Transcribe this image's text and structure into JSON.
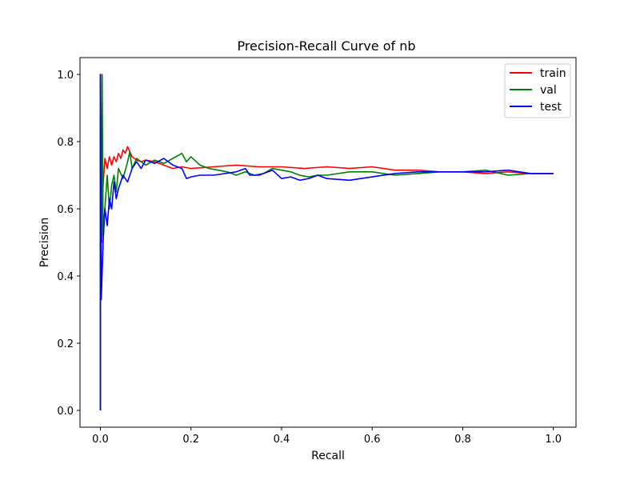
{
  "chart_data": {
    "type": "line",
    "title": "Precision-Recall Curve of nb",
    "xlabel": "Recall",
    "ylabel": "Precision",
    "xlim": [
      -0.045,
      1.05
    ],
    "ylim": [
      -0.05,
      1.05
    ],
    "xticks": [
      "0.0",
      "0.2",
      "0.4",
      "0.6",
      "0.8",
      "1.0"
    ],
    "yticks": [
      "0.0",
      "0.2",
      "0.4",
      "0.6",
      "0.8",
      "1.0"
    ],
    "grid": false,
    "legend_position": "top-right",
    "series": [
      {
        "name": "train",
        "color": "#ff0000",
        "points": [
          [
            0,
            0
          ],
          [
            0,
            1.0
          ],
          [
            0.003,
            0.5
          ],
          [
            0.006,
            0.67
          ],
          [
            0.01,
            0.75
          ],
          [
            0.015,
            0.72
          ],
          [
            0.02,
            0.755
          ],
          [
            0.025,
            0.73
          ],
          [
            0.03,
            0.755
          ],
          [
            0.035,
            0.74
          ],
          [
            0.04,
            0.765
          ],
          [
            0.045,
            0.75
          ],
          [
            0.05,
            0.775
          ],
          [
            0.055,
            0.765
          ],
          [
            0.06,
            0.785
          ],
          [
            0.065,
            0.77
          ],
          [
            0.07,
            0.755
          ],
          [
            0.08,
            0.745
          ],
          [
            0.09,
            0.74
          ],
          [
            0.1,
            0.745
          ],
          [
            0.12,
            0.74
          ],
          [
            0.14,
            0.73
          ],
          [
            0.16,
            0.72
          ],
          [
            0.18,
            0.725
          ],
          [
            0.2,
            0.72
          ],
          [
            0.25,
            0.725
          ],
          [
            0.3,
            0.73
          ],
          [
            0.35,
            0.725
          ],
          [
            0.4,
            0.725
          ],
          [
            0.45,
            0.72
          ],
          [
            0.5,
            0.725
          ],
          [
            0.55,
            0.72
          ],
          [
            0.6,
            0.725
          ],
          [
            0.65,
            0.715
          ],
          [
            0.7,
            0.715
          ],
          [
            0.75,
            0.71
          ],
          [
            0.8,
            0.71
          ],
          [
            0.85,
            0.705
          ],
          [
            0.9,
            0.71
          ],
          [
            0.95,
            0.705
          ],
          [
            1.0,
            0.705
          ]
        ]
      },
      {
        "name": "val",
        "color": "#008000",
        "points": [
          [
            0,
            0
          ],
          [
            0,
            1.0
          ],
          [
            0.002,
            0.5
          ],
          [
            0.004,
            1.0
          ],
          [
            0.006,
            0.52
          ],
          [
            0.01,
            0.6
          ],
          [
            0.015,
            0.7
          ],
          [
            0.02,
            0.6
          ],
          [
            0.025,
            0.67
          ],
          [
            0.03,
            0.7
          ],
          [
            0.035,
            0.65
          ],
          [
            0.04,
            0.72
          ],
          [
            0.05,
            0.69
          ],
          [
            0.06,
            0.74
          ],
          [
            0.065,
            0.77
          ],
          [
            0.07,
            0.72
          ],
          [
            0.08,
            0.75
          ],
          [
            0.1,
            0.73
          ],
          [
            0.12,
            0.745
          ],
          [
            0.14,
            0.735
          ],
          [
            0.16,
            0.75
          ],
          [
            0.18,
            0.765
          ],
          [
            0.19,
            0.74
          ],
          [
            0.2,
            0.755
          ],
          [
            0.22,
            0.73
          ],
          [
            0.24,
            0.72
          ],
          [
            0.26,
            0.715
          ],
          [
            0.28,
            0.71
          ],
          [
            0.3,
            0.7
          ],
          [
            0.32,
            0.71
          ],
          [
            0.34,
            0.7
          ],
          [
            0.36,
            0.705
          ],
          [
            0.38,
            0.72
          ],
          [
            0.4,
            0.715
          ],
          [
            0.42,
            0.71
          ],
          [
            0.44,
            0.7
          ],
          [
            0.46,
            0.695
          ],
          [
            0.48,
            0.7
          ],
          [
            0.5,
            0.7
          ],
          [
            0.55,
            0.71
          ],
          [
            0.6,
            0.71
          ],
          [
            0.65,
            0.7
          ],
          [
            0.7,
            0.705
          ],
          [
            0.75,
            0.71
          ],
          [
            0.8,
            0.71
          ],
          [
            0.85,
            0.715
          ],
          [
            0.9,
            0.7
          ],
          [
            0.95,
            0.705
          ],
          [
            1.0,
            0.705
          ]
        ]
      },
      {
        "name": "test",
        "color": "#0000ff",
        "points": [
          [
            0,
            0
          ],
          [
            0,
            1.0
          ],
          [
            0.002,
            0.33
          ],
          [
            0.006,
            0.5
          ],
          [
            0.01,
            0.6
          ],
          [
            0.015,
            0.55
          ],
          [
            0.02,
            0.63
          ],
          [
            0.025,
            0.6
          ],
          [
            0.03,
            0.68
          ],
          [
            0.035,
            0.63
          ],
          [
            0.04,
            0.66
          ],
          [
            0.05,
            0.7
          ],
          [
            0.06,
            0.68
          ],
          [
            0.07,
            0.72
          ],
          [
            0.08,
            0.74
          ],
          [
            0.09,
            0.72
          ],
          [
            0.1,
            0.745
          ],
          [
            0.12,
            0.735
          ],
          [
            0.14,
            0.75
          ],
          [
            0.16,
            0.73
          ],
          [
            0.18,
            0.72
          ],
          [
            0.19,
            0.69
          ],
          [
            0.2,
            0.695
          ],
          [
            0.22,
            0.7
          ],
          [
            0.25,
            0.7
          ],
          [
            0.3,
            0.71
          ],
          [
            0.32,
            0.72
          ],
          [
            0.33,
            0.7
          ],
          [
            0.35,
            0.7
          ],
          [
            0.38,
            0.715
          ],
          [
            0.4,
            0.69
          ],
          [
            0.42,
            0.695
          ],
          [
            0.44,
            0.685
          ],
          [
            0.46,
            0.69
          ],
          [
            0.48,
            0.7
          ],
          [
            0.5,
            0.69
          ],
          [
            0.55,
            0.685
          ],
          [
            0.6,
            0.695
          ],
          [
            0.65,
            0.705
          ],
          [
            0.7,
            0.71
          ],
          [
            0.75,
            0.71
          ],
          [
            0.8,
            0.71
          ],
          [
            0.85,
            0.71
          ],
          [
            0.9,
            0.715
          ],
          [
            0.95,
            0.705
          ],
          [
            1.0,
            0.705
          ]
        ]
      }
    ]
  }
}
